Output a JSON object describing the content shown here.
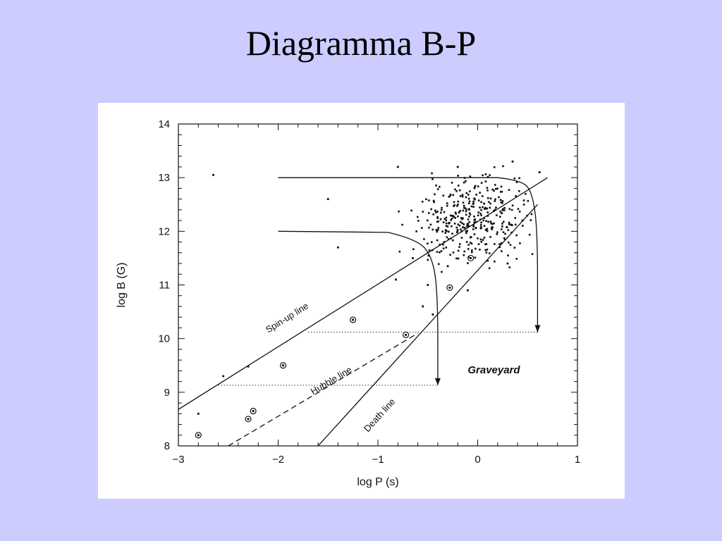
{
  "slide": {
    "title": "Diagramma B-P"
  },
  "chart_data": {
    "type": "scatter",
    "title": "",
    "xlabel": "log P (s)",
    "ylabel": "log B (G)",
    "xlim": [
      -3,
      1
    ],
    "ylim": [
      8,
      14
    ],
    "x_ticks": [
      "−3",
      "−2",
      "−1",
      "0",
      "1"
    ],
    "y_ticks": [
      "8",
      "9",
      "10",
      "11",
      "12",
      "13",
      "14"
    ],
    "grid": false,
    "lines": [
      {
        "name": "Spin-up line",
        "style": "solid",
        "points": [
          [
            -3,
            8.68
          ],
          [
            0.7,
            13.0
          ]
        ]
      },
      {
        "name": "Hubble line",
        "style": "dashed",
        "points": [
          [
            -2.5,
            8.0
          ],
          [
            -0.6,
            10.1
          ]
        ]
      },
      {
        "name": "Death line",
        "style": "solid",
        "points": [
          [
            -1.6,
            8.0
          ],
          [
            0.6,
            12.5
          ]
        ]
      }
    ],
    "evolution_tracks": [
      {
        "style": "solid",
        "points": [
          [
            -2.0,
            13.0
          ],
          [
            0.2,
            13.0
          ],
          [
            0.45,
            12.95
          ],
          [
            0.55,
            12.7
          ],
          [
            0.6,
            12.0
          ],
          [
            0.6,
            10.12
          ]
        ]
      },
      {
        "style": "solid",
        "points": [
          [
            -2.0,
            12.0
          ],
          [
            -0.9,
            11.98
          ],
          [
            -0.6,
            11.85
          ],
          [
            -0.45,
            11.5
          ],
          [
            -0.4,
            10.8
          ],
          [
            -0.4,
            9.13
          ]
        ]
      }
    ],
    "dotted_lines": [
      {
        "y": 10.12,
        "x": [
          -1.7,
          0.6
        ]
      },
      {
        "y": 9.13,
        "x": [
          -2.6,
          -0.4
        ]
      }
    ],
    "circled_points": [
      [
        -2.8,
        8.2
      ],
      [
        -2.3,
        8.5
      ],
      [
        -2.25,
        8.65
      ],
      [
        -1.95,
        9.5
      ],
      [
        -1.25,
        10.35
      ],
      [
        -0.72,
        10.07
      ],
      [
        -0.28,
        10.95
      ],
      [
        -0.07,
        11.5
      ]
    ],
    "isolated_points": [
      [
        -2.8,
        8.6
      ],
      [
        -2.55,
        9.3
      ],
      [
        -2.3,
        9.48
      ],
      [
        -1.5,
        12.6
      ],
      [
        -1.4,
        11.7
      ],
      [
        -0.8,
        13.2
      ],
      [
        -0.65,
        11.5
      ],
      [
        -0.55,
        10.6
      ],
      [
        -0.45,
        10.45
      ],
      [
        -0.82,
        11.1
      ],
      [
        -0.5,
        11.0
      ],
      [
        -0.3,
        11.35
      ],
      [
        0.1,
        11.45
      ],
      [
        0.35,
        13.3
      ],
      [
        0.62,
        13.1
      ],
      [
        -0.2,
        13.2
      ],
      [
        0.45,
        12.2
      ],
      [
        -2.65,
        13.05
      ],
      [
        0.3,
        11.4
      ],
      [
        -0.1,
        10.9
      ]
    ],
    "cluster": {
      "center": [
        -0.05,
        12.2
      ],
      "spread": [
        0.28,
        0.38
      ],
      "count": 380
    },
    "annotations": [
      {
        "text": "Spin-up line",
        "at": [
          -2.1,
          10.1
        ]
      },
      {
        "text": "Hubble line",
        "at": [
          -1.65,
          8.95
        ]
      },
      {
        "text": "Death line",
        "at": [
          -1.1,
          8.25
        ]
      },
      {
        "text": "Graveyard",
        "at": [
          -0.1,
          9.35
        ]
      }
    ]
  }
}
